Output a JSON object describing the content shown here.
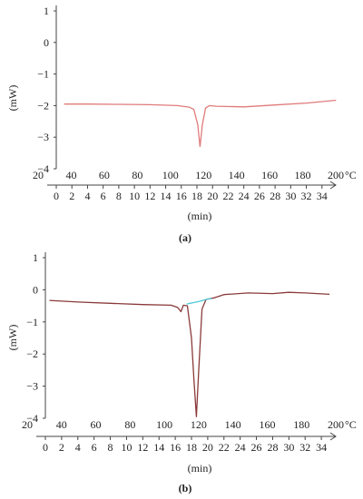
{
  "chart_data": [
    {
      "type": "line",
      "panel_label": "(a)",
      "ylabel": "(mW)",
      "temp_unit": "°C",
      "xlabel": "(min)",
      "ylim": [
        -4,
        1
      ],
      "yticks": [
        "1",
        "0",
        "−1",
        "−2",
        "−3",
        "−4"
      ],
      "temp_ticks": [
        "20",
        "40",
        "60",
        "80",
        "100",
        "120",
        "140",
        "160",
        "180",
        "200"
      ],
      "time_ticks": [
        "0",
        "2",
        "4",
        "6",
        "8",
        "10",
        "12",
        "14",
        "16",
        "18",
        "20",
        "22",
        "24",
        "26",
        "28",
        "30",
        "32",
        "34"
      ],
      "time_range_min": [
        0,
        36
      ],
      "series": [
        {
          "color": "#e07a7a",
          "x": [
            1,
            4,
            8,
            12,
            15.5,
            17,
            17.6,
            18.1,
            18.4,
            18.7,
            19.1,
            19.6,
            20.5,
            24,
            28,
            32,
            35.8
          ],
          "y": [
            -1.95,
            -1.95,
            -1.96,
            -1.97,
            -2.0,
            -2.05,
            -2.12,
            -2.6,
            -3.3,
            -2.6,
            -2.08,
            -2.0,
            -2.02,
            -2.04,
            -1.98,
            -1.92,
            -1.83
          ]
        }
      ]
    },
    {
      "type": "line",
      "panel_label": "(b)",
      "ylabel": "(mW)",
      "temp_unit": "°C",
      "xlabel": "(min)",
      "ylim": [
        -4,
        1
      ],
      "yticks": [
        "1",
        "0",
        "−1",
        "−2",
        "−3",
        "−4"
      ],
      "temp_ticks": [
        "20",
        "40",
        "60",
        "80",
        "100",
        "120",
        "140",
        "160",
        "180",
        "200"
      ],
      "time_ticks": [
        "0",
        "2",
        "4",
        "6",
        "8",
        "10",
        "12",
        "14",
        "16",
        "18",
        "20",
        "22",
        "24",
        "26",
        "28",
        "30",
        "32",
        "34"
      ],
      "time_range_min": [
        0,
        36
      ],
      "series": [
        {
          "color": "#8b3a3a",
          "x": [
            0.5,
            4,
            8,
            12,
            15.5,
            16.3,
            16.7,
            17.0,
            17.5,
            18.0,
            18.3,
            18.6,
            18.9,
            19.3,
            19.8,
            20.8,
            22,
            25,
            28,
            30,
            32,
            35
          ],
          "y": [
            -0.33,
            -0.38,
            -0.42,
            -0.46,
            -0.48,
            -0.55,
            -0.68,
            -0.48,
            -0.5,
            -1.5,
            -2.8,
            -3.95,
            -2.5,
            -0.6,
            -0.3,
            -0.25,
            -0.15,
            -0.1,
            -0.12,
            -0.08,
            -0.1,
            -0.14
          ]
        },
        {
          "color": "#4fc9d6",
          "x": [
            17.4,
            17.8,
            18.2,
            18.6,
            19.0,
            19.4,
            19.8,
            20.5
          ],
          "y": [
            -0.45,
            -0.42,
            -0.4,
            -0.38,
            -0.36,
            -0.33,
            -0.3,
            -0.27
          ]
        }
      ]
    }
  ]
}
